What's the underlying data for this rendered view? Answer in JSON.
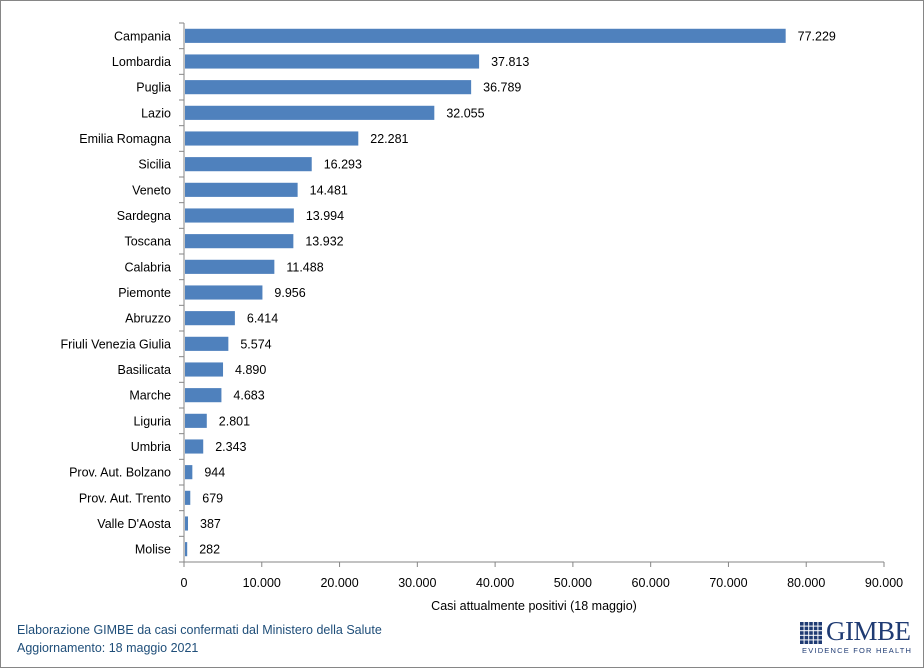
{
  "chart_data": {
    "type": "bar",
    "orientation": "horizontal",
    "categories": [
      "Campania",
      "Lombardia",
      "Puglia",
      "Lazio",
      "Emilia Romagna",
      "Sicilia",
      "Veneto",
      "Sardegna",
      "Toscana",
      "Calabria",
      "Piemonte",
      "Abruzzo",
      "Friuli Venezia Giulia",
      "Basilicata",
      "Marche",
      "Liguria",
      "Umbria",
      "Prov. Aut. Bolzano",
      "Prov. Aut. Trento",
      "Valle D'Aosta",
      "Molise"
    ],
    "values": [
      77229,
      37813,
      36789,
      32055,
      22281,
      16293,
      14481,
      13994,
      13932,
      11488,
      9956,
      6414,
      5574,
      4890,
      4683,
      2801,
      2343,
      944,
      679,
      387,
      282
    ],
    "value_labels": [
      "77.229",
      "37.813",
      "36.789",
      "32.055",
      "22.281",
      "16.293",
      "14.481",
      "13.994",
      "13.932",
      "11.488",
      "9.956",
      "6.414",
      "5.574",
      "4.890",
      "4.683",
      "2.801",
      "2.343",
      "944",
      "679",
      "387",
      "282"
    ],
    "xlabel": "Casi attualmente positivi (18 maggio)",
    "ylabel": "",
    "xlim": [
      0,
      90000
    ],
    "xticks": [
      0,
      10000,
      20000,
      30000,
      40000,
      50000,
      60000,
      70000,
      80000,
      90000
    ],
    "xtick_labels": [
      "0",
      "10.000",
      "20.000",
      "30.000",
      "40.000",
      "50.000",
      "60.000",
      "70.000",
      "80.000",
      "90.000"
    ],
    "grid": false,
    "bar_color": "#4f81bd"
  },
  "footer": {
    "line1": "Elaborazione GIMBE da casi confermati dal Ministero della Salute",
    "line2": "Aggiornamento: 18 maggio 2021"
  },
  "logo": {
    "name": "GIMBE",
    "tagline": "EVIDENCE FOR HEALTH",
    "color": "#1f3b73"
  }
}
